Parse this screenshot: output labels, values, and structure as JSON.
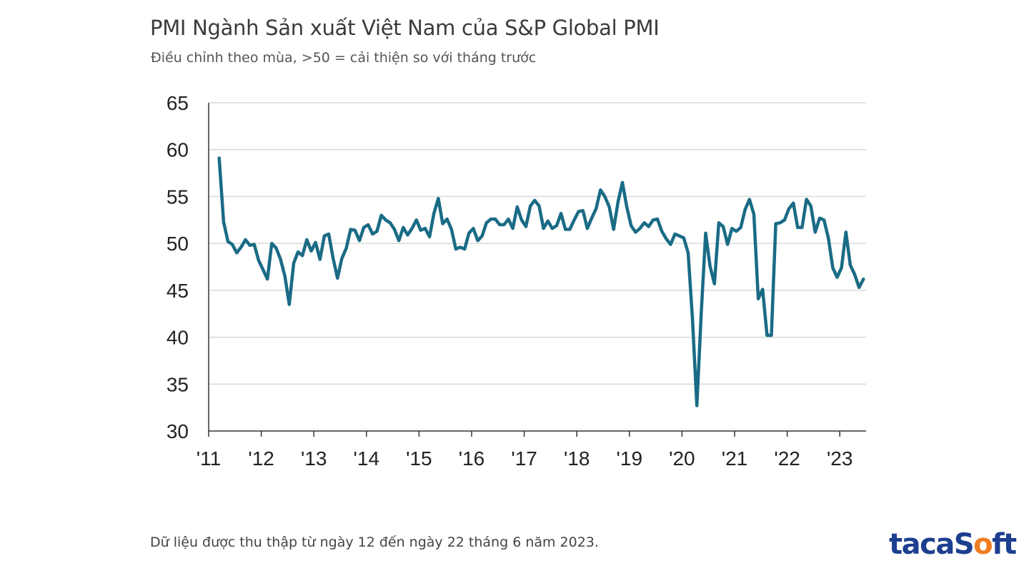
{
  "title": "PMI Ngành Sản xuất Việt Nam của S&P Global PMI",
  "subtitle": "Điều chỉnh theo mùa, >50 = cải thiện so với tháng trước",
  "footnote": "Dữ liệu được thu thập từ ngày 12 đến ngày 22 tháng 6 năm 2023.",
  "brand": {
    "part1": "taca",
    "part2": "S",
    "part3": "ft"
  },
  "colors": {
    "line": "#1a6b85",
    "grid": "#d9d9d9",
    "axis": "#333333",
    "brand": "#1d3f8f",
    "brand_accent": "#f07b1e"
  },
  "chart_data": {
    "type": "line",
    "title": "PMI Ngành Sản xuất Việt Nam của S&P Global PMI",
    "subtitle": "Điều chỉnh theo mùa, >50 = cải thiện so với tháng trước",
    "xlabel": "",
    "ylabel": "",
    "ylim": [
      30,
      65
    ],
    "yticks": [
      30,
      35,
      40,
      45,
      50,
      55,
      60,
      65
    ],
    "grid": true,
    "xlim": [
      2011.0,
      2023.5
    ],
    "xticks": [
      {
        "label": "'11",
        "value": 2011
      },
      {
        "label": "'12",
        "value": 2012
      },
      {
        "label": "'13",
        "value": 2013
      },
      {
        "label": "'14",
        "value": 2014
      },
      {
        "label": "'15",
        "value": 2015
      },
      {
        "label": "'16",
        "value": 2016
      },
      {
        "label": "'17",
        "value": 2017
      },
      {
        "label": "'18",
        "value": 2018
      },
      {
        "label": "'19",
        "value": 2019
      },
      {
        "label": "'20",
        "value": 2020
      },
      {
        "label": "'21",
        "value": 2021
      },
      {
        "label": "'22",
        "value": 2022
      },
      {
        "label": "'23",
        "value": 2023
      }
    ],
    "series": [
      {
        "name": "PMI",
        "start": 2011.2,
        "step": 0.08333,
        "values": [
          59.1,
          52.3,
          50.2,
          49.9,
          49.0,
          49.6,
          50.4,
          49.8,
          49.9,
          48.2,
          47.2,
          46.2,
          50.0,
          49.5,
          48.3,
          46.5,
          43.5,
          47.9,
          49.1,
          48.7,
          50.4,
          49.2,
          50.1,
          48.3,
          50.8,
          51.0,
          48.4,
          46.3,
          48.4,
          49.5,
          51.5,
          51.4,
          50.3,
          51.7,
          52.0,
          51.0,
          51.3,
          53.0,
          52.5,
          52.2,
          51.5,
          50.3,
          51.7,
          50.9,
          51.6,
          52.5,
          51.4,
          51.6,
          50.7,
          53.2,
          54.8,
          52.1,
          52.6,
          51.5,
          49.4,
          49.6,
          49.4,
          51.1,
          51.6,
          50.3,
          50.8,
          52.2,
          52.6,
          52.6,
          52.0,
          52.0,
          52.6,
          51.6,
          53.9,
          52.5,
          51.8,
          54.0,
          54.6,
          54.0,
          51.6,
          52.4,
          51.6,
          51.9,
          53.2,
          51.5,
          51.5,
          52.5,
          53.4,
          53.5,
          51.6,
          52.7,
          53.7,
          55.7,
          55.0,
          53.9,
          51.5,
          54.4,
          56.5,
          53.9,
          51.9,
          51.2,
          51.6,
          52.2,
          51.8,
          52.5,
          52.6,
          51.3,
          50.5,
          49.9,
          51.0,
          50.8,
          50.6,
          49.0,
          41.9,
          32.7,
          42.7,
          51.1,
          47.6,
          45.7,
          52.2,
          51.8,
          49.9,
          51.6,
          51.3,
          51.7,
          53.6,
          54.7,
          53.1,
          44.1,
          45.1,
          40.2,
          40.2,
          52.1,
          52.2,
          52.5,
          53.7,
          54.3,
          51.7,
          51.7,
          54.7,
          54.0,
          51.2,
          52.7,
          52.5,
          50.6,
          47.4,
          46.4,
          47.4,
          51.2,
          47.7,
          46.7,
          45.3,
          46.2
        ]
      }
    ]
  }
}
